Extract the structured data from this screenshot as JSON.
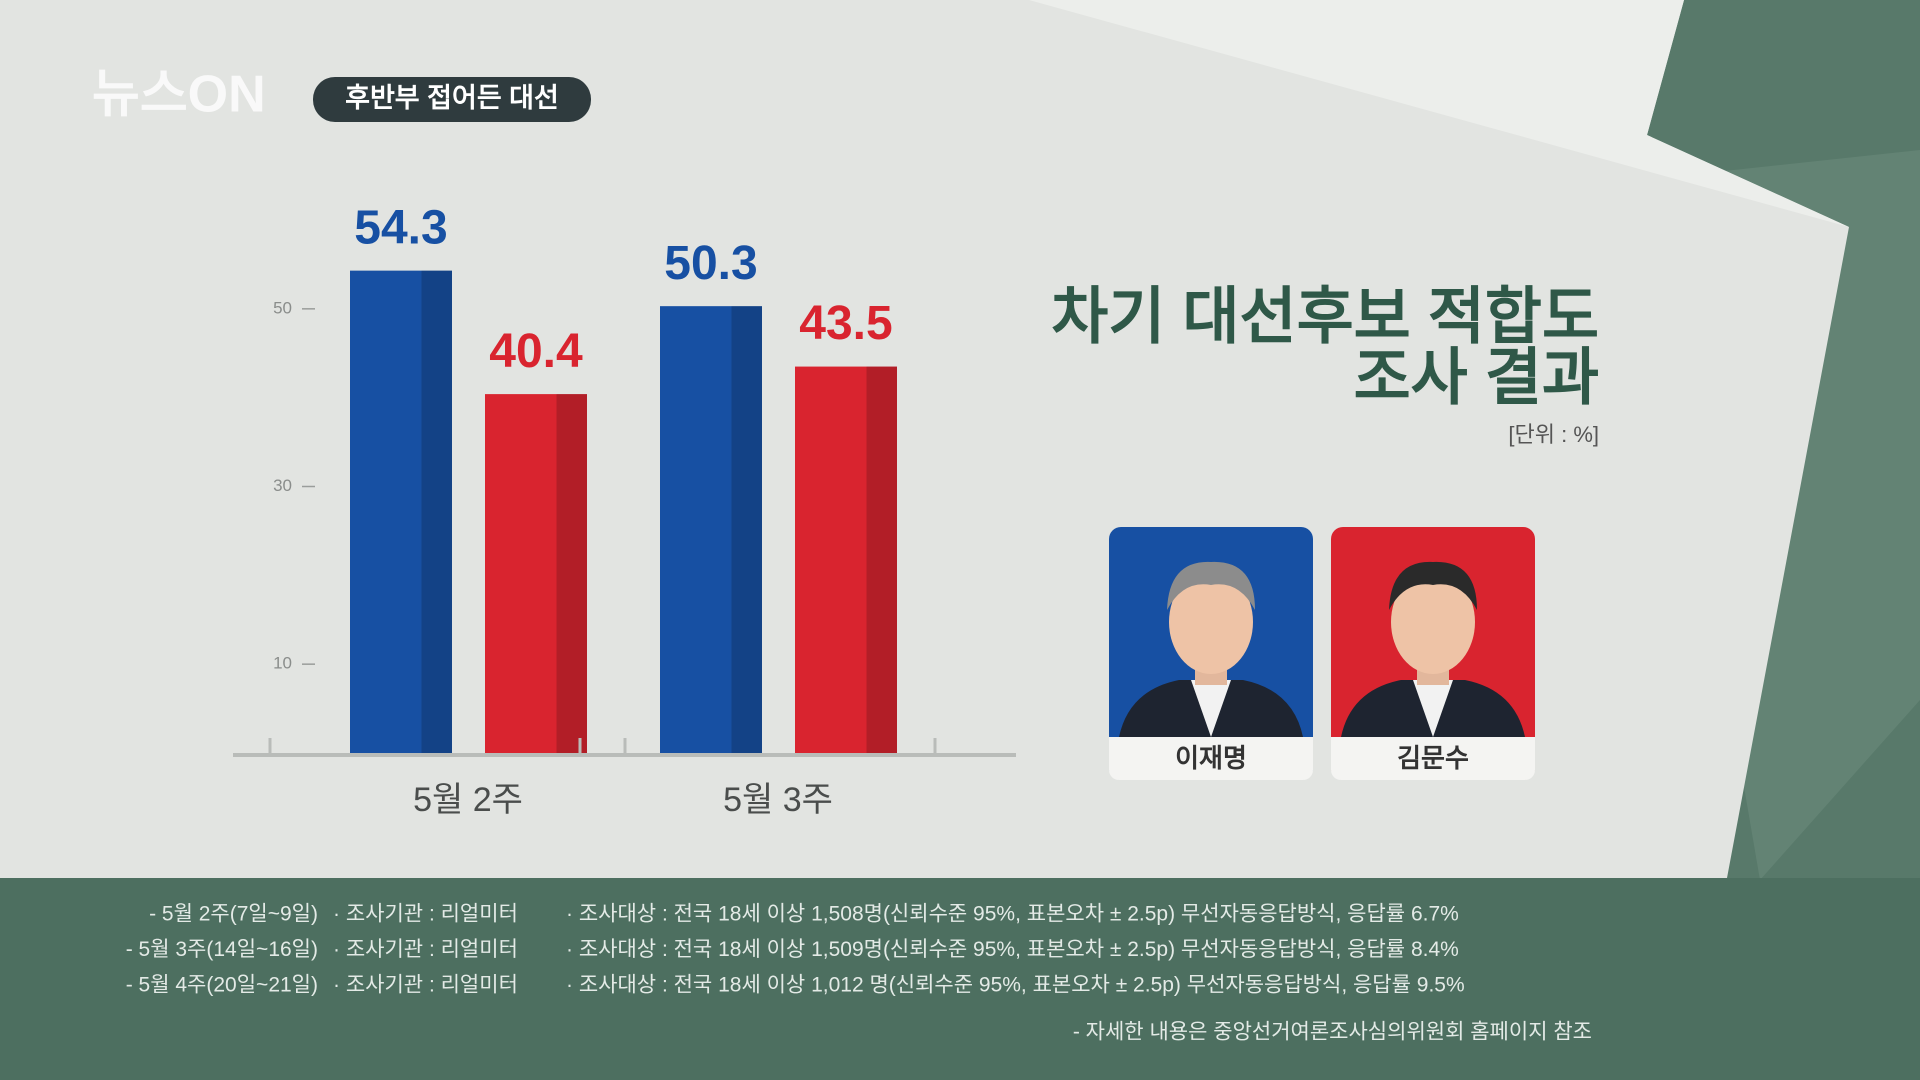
{
  "header": {
    "brand": "뉴스ON",
    "badge": "후반부 접어든 대선"
  },
  "chart_data": {
    "type": "bar",
    "title": [
      "차기 대선후보 적합도",
      "조사 결과"
    ],
    "unit": "[단위 : %]",
    "categories": [
      "5월 2주",
      "5월 3주"
    ],
    "series": [
      {
        "name": "이재명",
        "color": "#1750a3",
        "values": [
          54.3,
          50.3
        ]
      },
      {
        "name": "김문수",
        "color": "#d9242f",
        "values": [
          40.4,
          43.5
        ]
      }
    ],
    "ylim": [
      0,
      60
    ],
    "yticks": [
      10,
      30,
      50
    ]
  },
  "footer": {
    "notes": [
      {
        "period": "- 5월 2주(7일~9일)",
        "agency": "· 조사기관 : 리얼미터",
        "target": "· 조사대상 : 전국 18세 이상 1,508명(신뢰수준 95%, 표본오차  ± 2.5p) 무선자동응답방식, 응답률 6.7%"
      },
      {
        "period": "- 5월 3주(14일~16일)",
        "agency": "· 조사기관 : 리얼미터",
        "target": "· 조사대상 : 전국 18세 이상 1,509명(신뢰수준 95%, 표본오차  ± 2.5p) 무선자동응답방식, 응답률 8.4%"
      },
      {
        "period": "- 5월 4주(20일~21일)",
        "agency": "· 조사기관 : 리얼미터",
        "target": "· 조사대상 : 전국 18세 이상 1,012 명(신뢰수준 95%, 표본오차  ± 2.5p) 무선자동응답방식, 응답률 9.5%"
      }
    ],
    "source": "- 자세한 내용은 중앙선거여론조사심의위원회 홈페이지 참조"
  }
}
